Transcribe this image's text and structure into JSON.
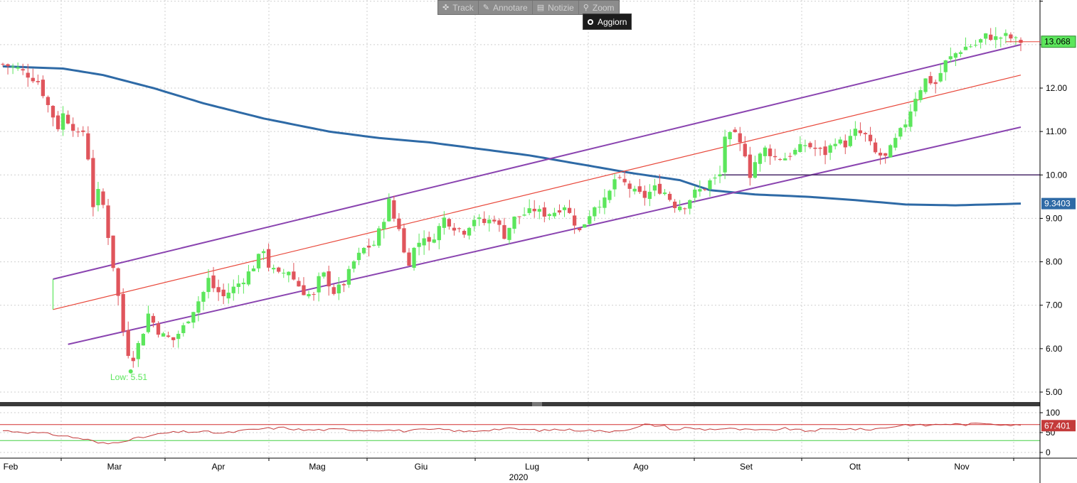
{
  "toolbar": {
    "track_label": "Track",
    "annotate_label": "Annotare",
    "news_label": "Notizie",
    "zoom_label": "Zoom",
    "update_label": "Aggiorn"
  },
  "colors": {
    "up": "#5ce65c",
    "down": "#e0555c",
    "ma": "#2e6aa6",
    "channel": "#8a44b0",
    "regression": "#e8473a",
    "rsi": "#c43a3a",
    "rsi_upper": "#d43030",
    "rsi_lower": "#44d044",
    "low_label": "#5ce65c"
  },
  "chart_data": {
    "type": "candlestick",
    "title": "",
    "xlabel": "2020",
    "ylabel": "",
    "ylim": [
      4.8,
      13.9
    ],
    "price_ticks": [
      "5.00",
      "6.00",
      "7.00",
      "8.00",
      "9.00",
      "10.00",
      "11.00",
      "12.00"
    ],
    "month_labels": [
      "Feb",
      "Mar",
      "Apr",
      "Mag",
      "Giu",
      "Lug",
      "Ago",
      "Set",
      "Ott",
      "Nov"
    ],
    "year_label": "2020",
    "low_annotation": "Low: 5.51",
    "low_value": 5.51,
    "last_price_label": "13.068",
    "last_price": 13.068,
    "ma_label": "9.3403",
    "ma_value": 9.3403,
    "horizontal_level": 10.0,
    "rsi": {
      "ylim": [
        -10,
        110
      ],
      "ticks": [
        "100",
        "50",
        "0"
      ],
      "last_label": "67.401",
      "last": 67.401,
      "upper": 70,
      "lower": 30,
      "anchors": [
        [
          0,
          55
        ],
        [
          8,
          48
        ],
        [
          12,
          42
        ],
        [
          14,
          38
        ],
        [
          17,
          32
        ],
        [
          19,
          24
        ],
        [
          21,
          22
        ],
        [
          23,
          27
        ],
        [
          25,
          32
        ],
        [
          28,
          38
        ],
        [
          32,
          48
        ],
        [
          36,
          52
        ],
        [
          40,
          52
        ],
        [
          44,
          48
        ],
        [
          48,
          55
        ],
        [
          52,
          60
        ],
        [
          56,
          62
        ],
        [
          60,
          56
        ],
        [
          64,
          57
        ],
        [
          68,
          58
        ],
        [
          72,
          56
        ],
        [
          76,
          57
        ],
        [
          80,
          54
        ],
        [
          84,
          57
        ],
        [
          88,
          58
        ],
        [
          90,
          55
        ],
        [
          92,
          52
        ],
        [
          96,
          56
        ],
        [
          100,
          60
        ],
        [
          104,
          58
        ],
        [
          108,
          55
        ],
        [
          110,
          58
        ],
        [
          112,
          57
        ],
        [
          116,
          56
        ],
        [
          118,
          55
        ],
        [
          120,
          52
        ],
        [
          124,
          58
        ],
        [
          126,
          60
        ],
        [
          128,
          70
        ],
        [
          132,
          66
        ],
        [
          134,
          56
        ],
        [
          136,
          62
        ],
        [
          140,
          58
        ],
        [
          144,
          60
        ],
        [
          148,
          57
        ],
        [
          152,
          55
        ],
        [
          156,
          60
        ],
        [
          160,
          54
        ],
        [
          164,
          58
        ],
        [
          168,
          60
        ],
        [
          172,
          57
        ],
        [
          176,
          62
        ],
        [
          180,
          70
        ],
        [
          184,
          68
        ],
        [
          188,
          72
        ],
        [
          192,
          70
        ],
        [
          196,
          74
        ],
        [
          200,
          70
        ],
        [
          203,
          67.4
        ]
      ]
    },
    "price_anchors": [
      [
        0,
        12.55
      ],
      [
        3,
        12.45
      ],
      [
        5,
        12.3
      ],
      [
        7,
        12.15
      ],
      [
        9,
        11.6
      ],
      [
        11,
        11.1
      ],
      [
        12,
        11.4
      ],
      [
        14,
        11.1
      ],
      [
        15,
        10.9
      ],
      [
        16,
        11.0
      ],
      [
        17,
        10.4
      ],
      [
        18,
        9.3
      ],
      [
        19,
        9.6
      ],
      [
        20,
        9.3
      ],
      [
        21,
        8.6
      ],
      [
        22,
        7.9
      ],
      [
        23,
        7.2
      ],
      [
        24,
        6.4
      ],
      [
        25,
        5.9
      ],
      [
        26,
        5.8
      ],
      [
        27,
        6.1
      ],
      [
        28,
        6.4
      ],
      [
        29,
        6.8
      ],
      [
        30,
        6.6
      ],
      [
        31,
        6.4
      ],
      [
        32,
        6.3
      ],
      [
        34,
        6.2
      ],
      [
        36,
        6.5
      ],
      [
        38,
        6.9
      ],
      [
        40,
        7.3
      ],
      [
        41,
        7.6
      ],
      [
        42,
        7.4
      ],
      [
        44,
        7.2
      ],
      [
        46,
        7.4
      ],
      [
        48,
        7.6
      ],
      [
        50,
        7.9
      ],
      [
        52,
        8.3
      ],
      [
        53,
        7.9
      ],
      [
        55,
        7.7
      ],
      [
        57,
        7.8
      ],
      [
        58,
        7.6
      ],
      [
        60,
        7.3
      ],
      [
        62,
        7.2
      ],
      [
        63,
        7.6
      ],
      [
        64,
        7.7
      ],
      [
        66,
        7.3
      ],
      [
        68,
        7.5
      ],
      [
        70,
        8.0
      ],
      [
        72,
        8.3
      ],
      [
        74,
        8.4
      ],
      [
        76,
        9.0
      ],
      [
        77,
        9.4
      ],
      [
        78,
        9.0
      ],
      [
        79,
        8.8
      ],
      [
        80,
        8.2
      ],
      [
        81,
        8.0
      ],
      [
        82,
        8.3
      ],
      [
        84,
        8.6
      ],
      [
        85,
        8.4
      ],
      [
        86,
        8.6
      ],
      [
        88,
        9.0
      ],
      [
        90,
        8.8
      ],
      [
        92,
        8.7
      ],
      [
        94,
        9.0
      ],
      [
        96,
        8.9
      ],
      [
        98,
        9.0
      ],
      [
        99,
        8.8
      ],
      [
        100,
        8.6
      ],
      [
        102,
        9.0
      ],
      [
        104,
        9.1
      ],
      [
        106,
        9.2
      ],
      [
        108,
        9.1
      ],
      [
        110,
        9.15
      ],
      [
        112,
        9.3
      ],
      [
        113,
        9.1
      ],
      [
        114,
        8.9
      ],
      [
        115,
        8.7
      ],
      [
        116,
        8.9
      ],
      [
        118,
        9.3
      ],
      [
        120,
        9.4
      ],
      [
        121,
        9.6
      ],
      [
        122,
        9.9
      ],
      [
        124,
        9.8
      ],
      [
        126,
        9.6
      ],
      [
        128,
        9.5
      ],
      [
        130,
        9.7
      ],
      [
        132,
        9.6
      ],
      [
        134,
        9.3
      ],
      [
        136,
        9.3
      ],
      [
        138,
        9.6
      ],
      [
        140,
        9.7
      ],
      [
        141,
        9.85
      ],
      [
        142,
        9.9
      ],
      [
        143,
        10.0
      ],
      [
        144,
        10.9
      ],
      [
        146,
        10.9
      ],
      [
        148,
        10.5
      ],
      [
        149,
        10.0
      ],
      [
        150,
        10.3
      ],
      [
        152,
        10.6
      ],
      [
        154,
        10.4
      ],
      [
        156,
        10.4
      ],
      [
        158,
        10.55
      ],
      [
        160,
        10.7
      ],
      [
        162,
        10.6
      ],
      [
        164,
        10.5
      ],
      [
        166,
        10.8
      ],
      [
        168,
        10.7
      ],
      [
        170,
        11.0
      ],
      [
        172,
        10.9
      ],
      [
        174,
        10.5
      ],
      [
        176,
        10.4
      ],
      [
        178,
        10.8
      ],
      [
        180,
        11.2
      ],
      [
        182,
        11.8
      ],
      [
        184,
        12.2
      ],
      [
        186,
        12.1
      ],
      [
        188,
        12.6
      ],
      [
        190,
        12.8
      ],
      [
        192,
        12.95
      ],
      [
        194,
        13.0
      ],
      [
        196,
        13.2
      ],
      [
        198,
        13.15
      ],
      [
        200,
        13.2
      ],
      [
        202,
        13.1
      ],
      [
        203,
        13.068
      ]
    ],
    "ma_anchors": [
      [
        0,
        12.5
      ],
      [
        12,
        12.45
      ],
      [
        20,
        12.3
      ],
      [
        30,
        12.0
      ],
      [
        40,
        11.65
      ],
      [
        52,
        11.3
      ],
      [
        65,
        11.0
      ],
      [
        75,
        10.85
      ],
      [
        85,
        10.75
      ],
      [
        95,
        10.6
      ],
      [
        105,
        10.45
      ],
      [
        115,
        10.25
      ],
      [
        125,
        10.05
      ],
      [
        135,
        9.88
      ],
      [
        141,
        9.65
      ],
      [
        150,
        9.55
      ],
      [
        160,
        9.5
      ],
      [
        170,
        9.42
      ],
      [
        180,
        9.32
      ],
      [
        190,
        9.3
      ],
      [
        203,
        9.34
      ]
    ],
    "channel": {
      "upper": [
        [
          10,
          7.6
        ],
        [
          203,
          13.0
        ]
      ],
      "mid": [
        [
          10,
          6.9
        ],
        [
          203,
          12.3
        ]
      ],
      "lower": [
        [
          13,
          6.1
        ],
        [
          203,
          11.1
        ]
      ]
    },
    "n_days": 205
  }
}
